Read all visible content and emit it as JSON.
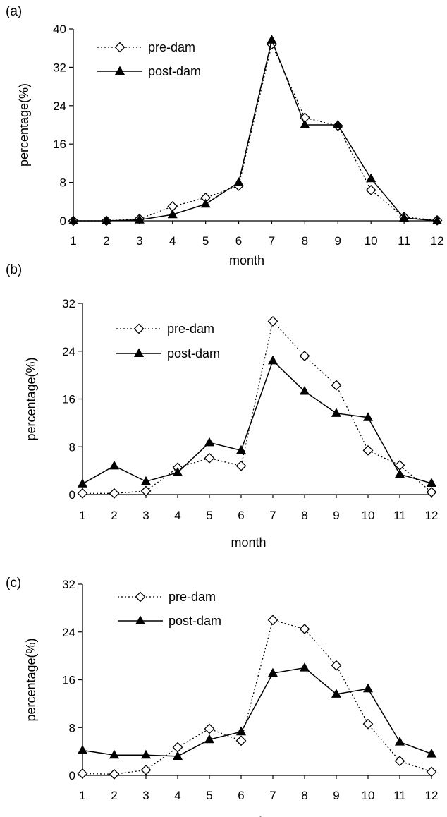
{
  "colors": {
    "foreground": "#000000",
    "background": "#ffffff",
    "marker_fill_open": "#ffffff"
  },
  "chart_data": [
    {
      "panel": "(a)",
      "type": "line",
      "xlabel": "month",
      "ylabel": "percentage(%)",
      "categories": [
        1,
        2,
        3,
        4,
        5,
        6,
        7,
        8,
        9,
        10,
        11,
        12
      ],
      "ylim": [
        0,
        40
      ],
      "yticks": [
        0,
        8,
        16,
        24,
        32,
        40
      ],
      "grid": false,
      "legend": "top-left",
      "series": [
        {
          "name": "pre-dam",
          "style": "dotted",
          "marker": "open-diamond",
          "values": [
            0,
            0,
            0.4,
            3.0,
            4.8,
            7.3,
            36.8,
            21.5,
            19.8,
            6.4,
            0.8,
            0.1
          ]
        },
        {
          "name": "post-dam",
          "style": "solid",
          "marker": "filled-triangle",
          "values": [
            0,
            0,
            0.2,
            1.3,
            3.5,
            8.0,
            37.7,
            20.0,
            20.0,
            8.8,
            0.6,
            0
          ]
        }
      ]
    },
    {
      "panel": "(b)",
      "type": "line",
      "xlabel": "month",
      "ylabel": "percentage(%)",
      "categories": [
        1,
        2,
        3,
        4,
        5,
        6,
        7,
        8,
        9,
        10,
        11,
        12
      ],
      "ylim": [
        0,
        32
      ],
      "yticks": [
        0,
        8,
        16,
        24,
        32
      ],
      "grid": false,
      "legend": "top-left",
      "series": [
        {
          "name": "pre-dam",
          "style": "dotted",
          "marker": "open-diamond",
          "values": [
            0.2,
            0.2,
            0.6,
            4.5,
            6.1,
            4.8,
            29.0,
            23.2,
            18.3,
            7.4,
            4.9,
            0.4
          ]
        },
        {
          "name": "post-dam",
          "style": "solid",
          "marker": "filled-triangle",
          "values": [
            1.8,
            4.8,
            2.2,
            3.7,
            8.7,
            7.4,
            22.4,
            17.3,
            13.6,
            12.9,
            3.4,
            1.9
          ]
        }
      ]
    },
    {
      "panel": "(c)",
      "type": "line",
      "xlabel": "month",
      "ylabel": "percentage(%)",
      "categories": [
        1,
        2,
        3,
        4,
        5,
        6,
        7,
        8,
        9,
        10,
        11,
        12
      ],
      "ylim": [
        0,
        32
      ],
      "yticks": [
        0,
        8,
        16,
        24,
        32
      ],
      "grid": false,
      "legend": "top-left",
      "series": [
        {
          "name": "pre-dam",
          "style": "dotted",
          "marker": "open-diamond",
          "values": [
            0.3,
            0.2,
            0.9,
            4.7,
            7.8,
            5.8,
            26.0,
            24.5,
            18.4,
            8.6,
            2.4,
            0.6
          ]
        },
        {
          "name": "post-dam",
          "style": "solid",
          "marker": "filled-triangle",
          "values": [
            4.2,
            3.4,
            3.4,
            3.2,
            6.0,
            7.3,
            17.1,
            18.0,
            13.6,
            14.5,
            5.6,
            3.6
          ]
        }
      ]
    }
  ]
}
